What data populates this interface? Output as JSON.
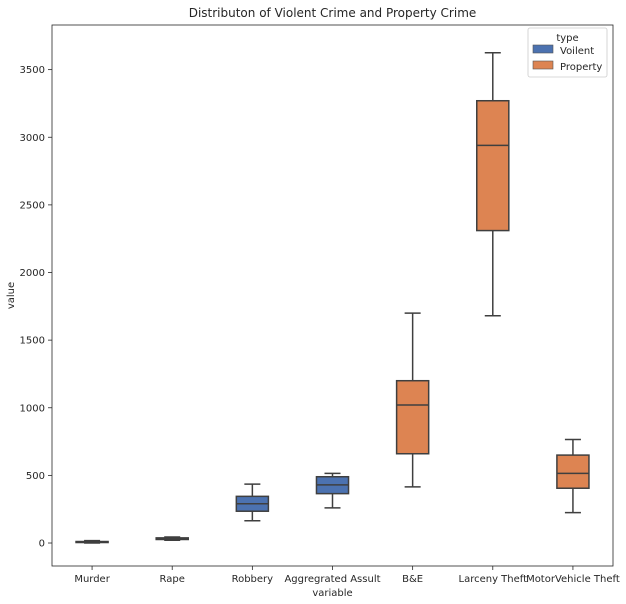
{
  "chart_data": {
    "type": "box",
    "title": "Distributon of Violent Crime and Property Crime",
    "xlabel": "variable",
    "ylabel": "value",
    "ylim": [
      -170,
      3830
    ],
    "yticks": [
      0,
      500,
      1000,
      1500,
      2000,
      2500,
      3000,
      3500
    ],
    "categories": [
      "Murder",
      "Rape",
      "Robbery",
      "Aggregrated Assult",
      "B&E",
      "Larceny Theft",
      "MotorVehicle Theft"
    ],
    "legend": {
      "title": "type",
      "position": "top-right"
    },
    "series": [
      {
        "name": "Voilent",
        "color": "#4c72b0"
      },
      {
        "name": "Property",
        "color": "#dd8452"
      }
    ],
    "boxes": [
      {
        "category": "Murder",
        "series": "Voilent",
        "min": 0,
        "q1": 5,
        "median": 8,
        "q3": 11,
        "max": 18
      },
      {
        "category": "Rape",
        "series": "Voilent",
        "min": 20,
        "q1": 26,
        "median": 32,
        "q3": 38,
        "max": 44
      },
      {
        "category": "Robbery",
        "series": "Voilent",
        "min": 165,
        "q1": 235,
        "median": 290,
        "q3": 345,
        "max": 435
      },
      {
        "category": "Aggregrated Assult",
        "series": "Voilent",
        "min": 260,
        "q1": 365,
        "median": 430,
        "q3": 490,
        "max": 515
      },
      {
        "category": "B&E",
        "series": "Property",
        "min": 415,
        "q1": 660,
        "median": 1020,
        "q3": 1200,
        "max": 1700
      },
      {
        "category": "Larceny Theft",
        "series": "Property",
        "min": 1680,
        "q1": 2310,
        "median": 2940,
        "q3": 3270,
        "max": 3625
      },
      {
        "category": "MotorVehicle Theft",
        "series": "Property",
        "min": 225,
        "q1": 405,
        "median": 515,
        "q3": 650,
        "max": 765
      }
    ]
  }
}
